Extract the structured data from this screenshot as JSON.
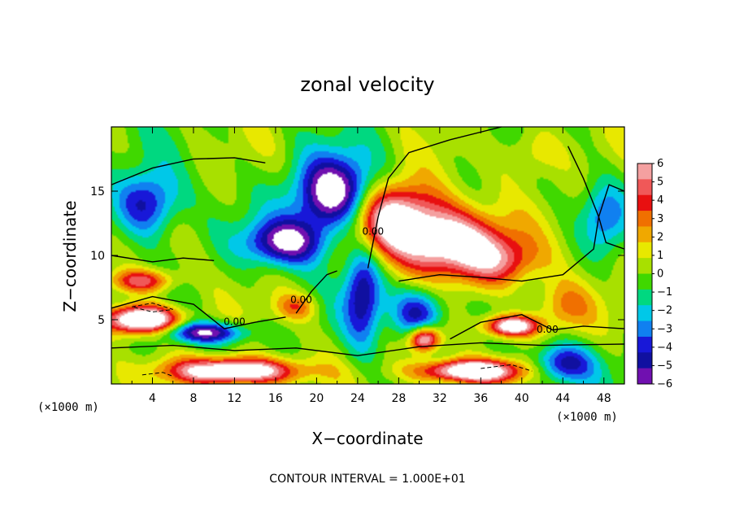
{
  "chart_data": {
    "type": "heatmap",
    "title": "zonal velocity",
    "xlabel": "X−coordinate",
    "ylabel": "Z−coordinate",
    "x_unit": "(×1000 m)",
    "y_unit": "(×1000 m)",
    "xlim": [
      0,
      50
    ],
    "ylim": [
      0,
      20
    ],
    "x_ticks": [
      "4",
      "8",
      "12",
      "16",
      "20",
      "24",
      "28",
      "32",
      "36",
      "40",
      "44",
      "48"
    ],
    "y_ticks": [
      "5",
      "10",
      "15"
    ],
    "colorbar": {
      "min": -6,
      "max": 6,
      "labels": [
        "6",
        "5",
        "4",
        "3",
        "2",
        "1",
        "0",
        "−1",
        "−2",
        "−3",
        "−4",
        "−5",
        "−6"
      ],
      "colors": [
        "#f4a0a0",
        "#f05858",
        "#e81010",
        "#f07000",
        "#f0a800",
        "#e8e800",
        "#a8e000",
        "#40d800",
        "#00d880",
        "#00c8e8",
        "#1080f0",
        "#1818d8",
        "#1010a0",
        "#7010b0"
      ]
    },
    "contour_labels": [
      "0.00",
      "0.00",
      "0.00",
      "0.00"
    ],
    "contour_interval_text": "CONTOUR INTERVAL = 1.000E+01",
    "features": [
      {
        "x": 27.0,
        "z": 13.0,
        "u": 8,
        "sx": 5.0,
        "sz": 2.8
      },
      {
        "x": 33.0,
        "z": 11.0,
        "u": 7,
        "sx": 5.0,
        "sz": 2.5
      },
      {
        "x": 38.0,
        "z": 9.5,
        "u": 4,
        "sx": 4.0,
        "sz": 2.0
      },
      {
        "x": 22.0,
        "z": 14.5,
        "u": -9,
        "sx": 4.0,
        "sz": 3.0
      },
      {
        "x": 17.0,
        "z": 11.0,
        "u": -6,
        "sx": 4.0,
        "sz": 1.8
      },
      {
        "x": 3.5,
        "z": 14.0,
        "u": -5,
        "sx": 3.0,
        "sz": 2.5
      },
      {
        "x": 24.5,
        "z": 7.0,
        "u": -5,
        "sx": 1.8,
        "sz": 4.0
      },
      {
        "x": 30.0,
        "z": 5.5,
        "u": -5,
        "sx": 2.5,
        "sz": 2.0
      },
      {
        "x": 3.0,
        "z": 5.0,
        "u": 10,
        "sx": 3.5,
        "sz": 1.1
      },
      {
        "x": 12.0,
        "z": 1.0,
        "u": 9,
        "sx": 6.0,
        "sz": 1.0
      },
      {
        "x": 35.0,
        "z": 1.0,
        "u": 9,
        "sx": 5.0,
        "sz": 0.9
      },
      {
        "x": 39.0,
        "z": 4.5,
        "u": 8,
        "sx": 2.5,
        "sz": 0.8
      },
      {
        "x": 30.5,
        "z": 3.5,
        "u": 8,
        "sx": 1.5,
        "sz": 1.0
      },
      {
        "x": 3.0,
        "z": 8.0,
        "u": 5,
        "sx": 3.0,
        "sz": 0.9
      },
      {
        "x": 9.0,
        "z": 4.0,
        "u": -6,
        "sx": 4.0,
        "sz": 0.8
      },
      {
        "x": 44.0,
        "z": 1.5,
        "u": -5,
        "sx": 3.0,
        "sz": 1.5
      },
      {
        "x": 48.0,
        "z": 13.0,
        "u": -3,
        "sx": 2.0,
        "sz": 2.5
      },
      {
        "x": 44.0,
        "z": 6.0,
        "u": 3,
        "sx": 3.0,
        "sz": 2.0
      },
      {
        "x": 41.0,
        "z": 18.0,
        "u": 2,
        "sx": 3.0,
        "sz": 2.0
      },
      {
        "x": 18.0,
        "z": 6.0,
        "u": 3,
        "sx": 2.0,
        "sz": 1.0
      }
    ]
  }
}
